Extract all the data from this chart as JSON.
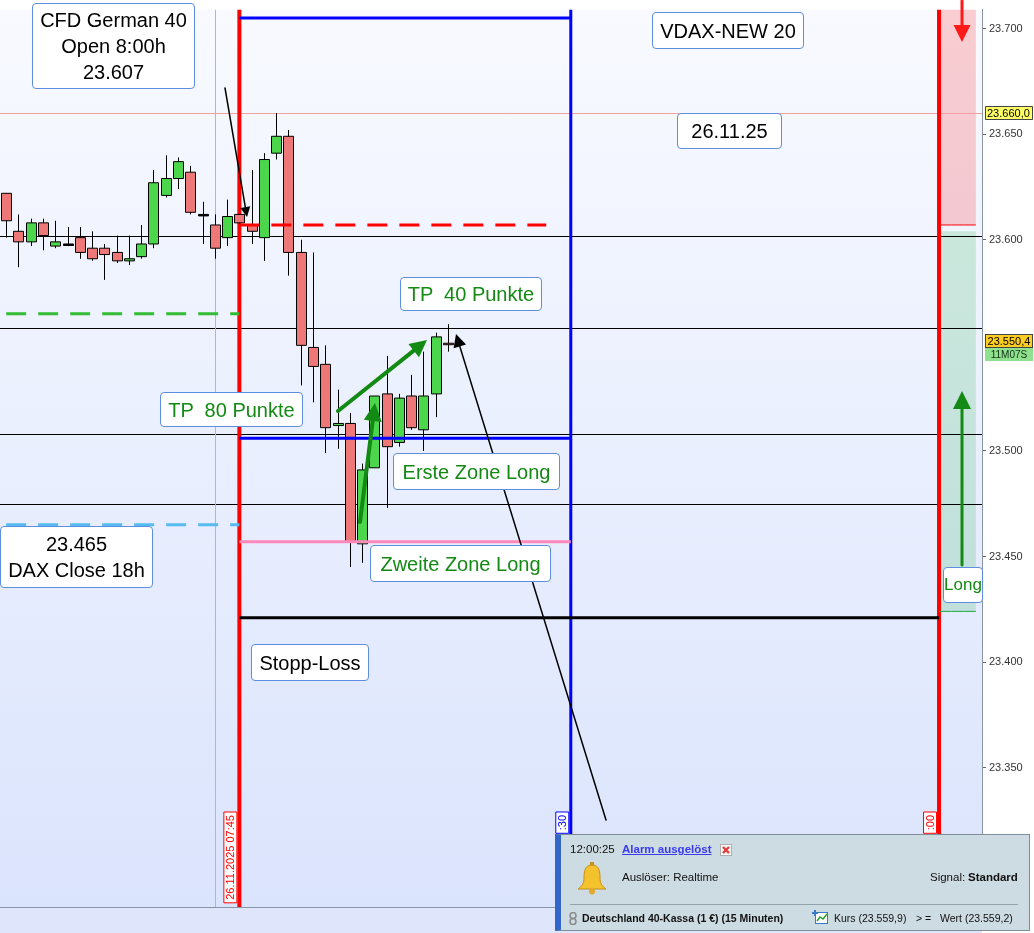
{
  "chart_data": {
    "type": "candlestick",
    "categories": [
      null,
      null,
      null,
      null,
      null,
      null,
      null,
      null,
      null,
      null,
      null,
      null,
      null,
      null,
      null,
      null,
      null,
      null,
      null,
      null,
      null,
      null,
      null,
      null,
      null,
      null,
      null,
      null,
      null,
      null,
      null,
      null,
      null,
      null,
      null,
      null,
      null,
      null,
      null,
      null,
      null,
      null,
      null,
      null,
      null,
      null,
      null,
      null,
      null,
      null,
      null,
      null,
      null,
      null,
      null,
      null,
      null,
      null,
      null,
      null,
      null,
      null,
      null,
      null,
      null,
      null,
      null,
      null,
      null,
      null,
      null,
      null,
      null,
      null,
      null,
      null,
      null,
      null,
      null,
      null
    ],
    "ohlc": [
      [
        23622,
        23622,
        23601,
        23609
      ],
      [
        23604,
        23612,
        23587,
        23599
      ],
      [
        23599,
        23610,
        23597,
        23608
      ],
      [
        23608,
        23610,
        23595,
        23602
      ],
      [
        23597,
        23609,
        23596,
        23599
      ],
      [
        23598,
        23606,
        23597,
        23598
      ],
      [
        23601,
        23606,
        23591,
        23594
      ],
      [
        23596,
        23604,
        23590,
        23591
      ],
      [
        23596,
        23598,
        23581,
        23593
      ],
      [
        23594,
        23602,
        23589,
        23590
      ],
      [
        23590,
        23602,
        23588,
        23591
      ],
      [
        23592,
        23607,
        23591,
        23598
      ],
      [
        23598,
        23633,
        23596,
        23627
      ],
      [
        23621,
        23640,
        23620,
        23629
      ],
      [
        23629,
        23639,
        23624,
        23637
      ],
      [
        23632,
        23635,
        23612,
        23613
      ],
      [
        23612,
        23618,
        23598,
        23612
      ],
      [
        23607,
        23612,
        23591,
        23596
      ],
      [
        23601,
        23619,
        23597,
        23611
      ],
      [
        23612,
        23612,
        23607,
        23608
      ],
      [
        23607,
        23633,
        23598,
        23604
      ],
      [
        23601,
        23641,
        23590,
        23638
      ],
      [
        23641,
        23660,
        23638,
        23649
      ],
      [
        23649,
        23652,
        23583,
        23594
      ],
      [
        23594,
        23600,
        23531,
        23550
      ],
      [
        23549,
        23594,
        23523,
        23540
      ],
      [
        23541,
        23550,
        23499,
        23511
      ],
      [
        23512,
        23529,
        23501,
        23513
      ],
      [
        23513,
        23518,
        23445,
        23457
      ],
      [
        23456,
        23494,
        23447,
        23491
      ],
      [
        23492,
        23526,
        23492,
        23526
      ],
      [
        23527,
        23545,
        23473,
        23502
      ],
      [
        23504,
        23527,
        23502,
        23525
      ],
      [
        23526,
        23536,
        23510,
        23511
      ],
      [
        23510,
        23547,
        23500,
        23526
      ],
      [
        23527,
        23556,
        23516,
        23554
      ],
      [
        23551,
        23560,
        23547,
        23550.4
      ],
      null,
      null,
      null,
      null,
      null,
      null,
      null,
      null,
      null,
      null,
      null,
      null,
      null,
      null,
      null,
      null,
      null,
      null,
      null,
      null,
      null,
      null,
      null,
      null,
      null,
      null,
      null,
      null,
      null,
      null,
      null,
      null,
      null,
      null,
      null,
      null,
      null,
      null,
      null,
      null,
      null,
      null,
      null
    ],
    "colors": [
      "#ee7777",
      "#ee7777",
      "#4cd64c",
      "#ee7777",
      "#4cd64c",
      "#000000",
      "#ee7777",
      "#ee7777",
      "#ee7777",
      "#ee7777",
      "#4cd64c",
      "#4cd64c",
      "#4cd64c",
      "#4cd64c",
      "#4cd64c",
      "#ee7777",
      "#000000",
      "#ee7777",
      "#4cd64c",
      "#ee7777",
      "#ee7777",
      "#4cd64c",
      "#4cd64c",
      "#ee7777",
      "#ee7777",
      "#ee7777",
      "#ee7777",
      "#4cd64c",
      "#ee7777",
      "#4cd64c",
      "#4cd64c",
      "#ee7777",
      "#4cd64c",
      "#ee7777",
      "#4cd64c",
      "#4cd64c",
      "#ee7777",
      null,
      null,
      null,
      null,
      null,
      null,
      null,
      null,
      null,
      null,
      null,
      null,
      null,
      null,
      null,
      null,
      null,
      null,
      null,
      null,
      null,
      null,
      null,
      null,
      null,
      null,
      null,
      null,
      null,
      null,
      null,
      null,
      null,
      null,
      null,
      null,
      null,
      null,
      null,
      null,
      null,
      null,
      null
    ],
    "series": [
      {
        "type": "line",
        "color": "#0000ff",
        "values": [
          null,
          null,
          null,
          null,
          null,
          null,
          null,
          null,
          null,
          null,
          null,
          null,
          null,
          null,
          null,
          null,
          null,
          null,
          null,
          23705,
          23705,
          23705,
          23705,
          23705,
          23705,
          23705,
          23705,
          23705,
          23705,
          23705,
          23705,
          23705,
          23705,
          23705,
          23705,
          23705,
          23705,
          23705,
          23705,
          23705,
          23705,
          23705,
          23705,
          23705,
          23705,
          23705,
          23705,
          null,
          null,
          null,
          null,
          null,
          null,
          null,
          null,
          null,
          null,
          null,
          null,
          null,
          null,
          null,
          null,
          null,
          null,
          null,
          null,
          null,
          null,
          null,
          null,
          null,
          null,
          null,
          null,
          null,
          null,
          null,
          null,
          null
        ]
      },
      {
        "type": "line",
        "color": "#0000ff",
        "values": [
          null,
          null,
          null,
          null,
          null,
          null,
          null,
          null,
          null,
          null,
          null,
          null,
          null,
          null,
          null,
          null,
          null,
          null,
          null,
          23506,
          23506,
          23506,
          23506,
          23506,
          23506,
          23506,
          23506,
          23506,
          23506,
          23506,
          23506,
          23506,
          23506,
          23506,
          23506,
          23506,
          23506,
          23506,
          23506,
          23506,
          23506,
          23506,
          23506,
          23506,
          23506,
          23506,
          23506,
          null,
          null,
          null,
          null,
          null,
          null,
          null,
          null,
          null,
          null,
          null,
          null,
          null,
          null,
          null,
          null,
          null,
          null,
          null,
          null,
          null,
          null,
          null,
          null,
          null,
          null,
          null,
          null,
          null,
          null,
          null,
          null,
          null
        ]
      },
      {
        "type": "line",
        "color": "#ff0000",
        "line_style": "dashed",
        "values": [
          null,
          null,
          null,
          null,
          null,
          null,
          null,
          null,
          null,
          null,
          null,
          null,
          null,
          null,
          null,
          null,
          null,
          null,
          null,
          23607,
          23607,
          23607,
          23607,
          23607,
          23607,
          23607,
          23607,
          23607,
          23607,
          23607,
          23607,
          23607,
          23607,
          23607,
          23607,
          23607,
          23607,
          23607,
          23607,
          23607,
          23607,
          23607,
          23607,
          23607,
          23607,
          null,
          null,
          null,
          null,
          null,
          null,
          null,
          null,
          null,
          null,
          null,
          null,
          null,
          null,
          null,
          null,
          null,
          null,
          null,
          null,
          null,
          null,
          null,
          null,
          null,
          null,
          null,
          null,
          null,
          null,
          null,
          null,
          null,
          null,
          null
        ]
      },
      {
        "type": "line",
        "color": "#33bb33",
        "line_style": "dashed",
        "values": [
          23565,
          23565,
          23565,
          23565,
          23565,
          23565,
          23565,
          23565,
          23565,
          23565,
          23565,
          23565,
          23565,
          23565,
          23565,
          23565,
          23565,
          23565,
          23565,
          23565,
          null,
          null,
          null,
          null,
          null,
          null,
          null,
          null,
          null,
          null,
          null,
          null,
          null,
          null,
          null,
          null,
          null,
          null,
          null,
          null,
          null,
          null,
          null,
          null,
          null,
          null,
          null,
          null,
          null,
          null,
          null,
          null,
          null,
          null,
          null,
          null,
          null,
          null,
          null,
          null,
          null,
          null,
          null,
          null,
          null,
          null,
          null,
          null,
          null,
          null,
          null,
          null,
          null,
          null,
          null,
          null,
          null,
          null,
          null,
          null
        ]
      },
      {
        "type": "line",
        "color": "#55bbf0",
        "line_style": "dashed",
        "values": [
          23465,
          23465,
          23465,
          23465,
          23465,
          23465,
          23465,
          23465,
          23465,
          23465,
          23465,
          23465,
          23465,
          23465,
          23465,
          23465,
          23465,
          23465,
          23465,
          23465,
          null,
          null,
          null,
          null,
          null,
          null,
          null,
          null,
          null,
          null,
          null,
          null,
          null,
          null,
          null,
          null,
          null,
          null,
          null,
          null,
          null,
          null,
          null,
          null,
          null,
          null,
          null,
          null,
          null,
          null,
          null,
          null,
          null,
          null,
          null,
          null,
          null,
          null,
          null,
          null,
          null,
          null,
          null,
          null,
          null,
          null,
          null,
          null,
          null,
          null,
          null,
          null,
          null,
          null,
          null,
          null,
          null,
          null,
          null,
          null
        ]
      },
      {
        "type": "line",
        "color": "#ff88bb",
        "values": [
          null,
          null,
          null,
          null,
          null,
          null,
          null,
          null,
          null,
          null,
          null,
          null,
          null,
          null,
          null,
          null,
          null,
          null,
          null,
          23457,
          23457,
          23457,
          23457,
          23457,
          23457,
          23457,
          23457,
          23457,
          23457,
          23457,
          23457,
          23457,
          23457,
          23457,
          23457,
          23457,
          23457,
          23457,
          23457,
          23457,
          23457,
          23457,
          23457,
          23457,
          23457,
          23457,
          23457,
          null,
          null,
          null,
          null,
          null,
          null,
          null,
          null,
          null,
          null,
          null,
          null,
          null,
          null,
          null,
          null,
          null,
          null,
          null,
          null,
          null,
          null,
          null,
          null,
          null,
          null,
          null,
          null,
          null,
          null,
          null,
          null,
          null
        ]
      },
      {
        "type": "line",
        "color": "#000000",
        "values": [
          null,
          null,
          null,
          null,
          null,
          null,
          null,
          null,
          null,
          null,
          null,
          null,
          null,
          null,
          null,
          null,
          null,
          null,
          null,
          23421,
          23421,
          23421,
          23421,
          23421,
          23421,
          23421,
          23421,
          23421,
          23421,
          23421,
          23421,
          23421,
          23421,
          23421,
          23421,
          23421,
          23421,
          23421,
          23421,
          23421,
          23421,
          23421,
          23421,
          23421,
          23421,
          23421,
          23421,
          23421,
          23421,
          23421,
          23421,
          23421,
          23421,
          23421,
          23421,
          23421,
          23421,
          23421,
          23421,
          23421,
          23421,
          23421,
          23421,
          23421,
          23421,
          23421,
          23421,
          23421,
          23421,
          23421,
          23421,
          23421,
          23421,
          23421,
          23421,
          23421,
          23421,
          null,
          null,
          null
        ]
      },
      {
        "type": "line",
        "color": "#ff0000",
        "values": [
          null,
          null,
          null,
          null,
          null,
          null,
          null,
          null,
          null,
          null,
          null,
          null,
          null,
          null,
          null,
          null,
          null,
          null,
          null,
          null,
          null,
          null,
          null,
          null,
          null,
          null,
          null,
          null,
          null,
          null,
          null,
          null,
          null,
          null,
          null,
          null,
          null,
          null,
          null,
          null,
          null,
          null,
          null,
          null,
          null,
          null,
          null,
          null,
          null,
          null,
          null,
          null,
          null,
          null,
          null,
          null,
          null,
          null,
          null,
          null,
          null,
          null,
          null,
          null,
          null,
          null,
          null,
          null,
          null,
          null,
          null,
          null,
          null,
          null,
          null,
          null,
          23607,
          23607,
          23607,
          23607
        ],
        "lower": [
          null,
          null,
          null,
          null,
          null,
          null,
          null,
          null,
          null,
          null,
          null,
          null,
          null,
          null,
          null,
          null,
          null,
          null,
          null,
          null,
          null,
          null,
          null,
          null,
          null,
          null,
          null,
          null,
          null,
          null,
          null,
          null,
          null,
          null,
          null,
          null,
          null,
          null,
          null,
          null,
          null,
          null,
          null,
          null,
          null,
          null,
          null,
          null,
          null,
          null,
          null,
          null,
          null,
          null,
          null,
          null,
          null,
          null,
          null,
          null,
          null,
          null,
          null,
          null,
          null,
          null,
          null,
          null,
          null,
          null,
          null,
          null,
          null,
          null,
          null,
          null,
          23607,
          23607,
          23607,
          23607
        ],
        "upper": [
          null,
          null,
          null,
          null,
          null,
          null,
          null,
          null,
          null,
          null,
          null,
          null,
          null,
          null,
          null,
          null,
          null,
          null,
          null,
          null,
          null,
          null,
          null,
          null,
          null,
          null,
          null,
          null,
          null,
          null,
          null,
          null,
          null,
          null,
          null,
          null,
          null,
          null,
          null,
          null,
          null,
          null,
          null,
          null,
          null,
          null,
          null,
          null,
          null,
          null,
          null,
          null,
          null,
          null,
          null,
          null,
          null,
          null,
          null,
          null,
          null,
          null,
          null,
          null,
          null,
          null,
          null,
          null,
          null,
          null,
          null,
          null,
          null,
          null,
          null,
          null,
          23709,
          23709,
          23709,
          23709
        ]
      },
      {
        "type": "line",
        "color": "#22aa44",
        "values": [
          null,
          null,
          null,
          null,
          null,
          null,
          null,
          null,
          null,
          null,
          null,
          null,
          null,
          null,
          null,
          null,
          null,
          null,
          null,
          null,
          null,
          null,
          null,
          null,
          null,
          null,
          null,
          null,
          null,
          null,
          null,
          null,
          null,
          null,
          null,
          null,
          null,
          null,
          null,
          null,
          null,
          null,
          null,
          null,
          null,
          null,
          null,
          null,
          null,
          null,
          null,
          null,
          null,
          null,
          null,
          null,
          null,
          null,
          null,
          null,
          null,
          null,
          null,
          null,
          null,
          null,
          null,
          null,
          null,
          null,
          null,
          null,
          null,
          null,
          null,
          null,
          23424,
          23424,
          23424,
          23424
        ],
        "lower": [
          null,
          null,
          null,
          null,
          null,
          null,
          null,
          null,
          null,
          null,
          null,
          null,
          null,
          null,
          null,
          null,
          null,
          null,
          null,
          null,
          null,
          null,
          null,
          null,
          null,
          null,
          null,
          null,
          null,
          null,
          null,
          null,
          null,
          null,
          null,
          null,
          null,
          null,
          null,
          null,
          null,
          null,
          null,
          null,
          null,
          null,
          null,
          null,
          null,
          null,
          null,
          null,
          null,
          null,
          null,
          null,
          null,
          null,
          null,
          null,
          null,
          null,
          null,
          null,
          null,
          null,
          null,
          null,
          null,
          null,
          null,
          null,
          null,
          null,
          null,
          null,
          23424,
          23424,
          23424,
          23424
        ],
        "upper": [
          null,
          null,
          null,
          null,
          null,
          null,
          null,
          null,
          null,
          null,
          null,
          null,
          null,
          null,
          null,
          null,
          null,
          null,
          null,
          null,
          null,
          null,
          null,
          null,
          null,
          null,
          null,
          null,
          null,
          null,
          null,
          null,
          null,
          null,
          null,
          null,
          null,
          null,
          null,
          null,
          null,
          null,
          null,
          null,
          null,
          null,
          null,
          null,
          null,
          null,
          null,
          null,
          null,
          null,
          null,
          null,
          null,
          null,
          null,
          null,
          null,
          null,
          null,
          null,
          null,
          null,
          null,
          null,
          null,
          null,
          null,
          null,
          null,
          null,
          null,
          null,
          23604,
          23604,
          23604,
          23604
        ]
      }
    ],
    "ylim": [
      23284,
      23709
    ],
    "yticks": [
      {
        "value": 23350,
        "label": "23.350"
      },
      {
        "value": 23400,
        "label": "23.400"
      },
      {
        "value": 23450,
        "label": "23.450"
      },
      {
        "value": 23500,
        "label": "23.500"
      },
      {
        "value": 23600,
        "label": "23.600"
      },
      {
        "value": 23650,
        "label": "23.650"
      },
      {
        "value": 23700,
        "label": "23.700"
      }
    ],
    "tick_labels": "y",
    "ref_lines": [
      {
        "axis": "y",
        "value": 23660,
        "label": "23.660,0",
        "color": "#f0a0a0"
      },
      {
        "axis": "y",
        "value": 23602,
        "color": "#000000"
      },
      {
        "axis": "y",
        "value": 23558,
        "color": "#000000"
      },
      {
        "axis": "y",
        "value": 23508,
        "color": "#000000"
      },
      {
        "axis": "y",
        "value": 23475,
        "color": "#000000"
      }
    ],
    "annotations": [
      "CFD German 40\nOpen 8:00h\n23.607",
      "VDAX-NEW 20",
      "26.11.25",
      "TP  40 Punkte",
      "TP  80 Punkte",
      "Erste Zone Long",
      "23.465\nDAX Close 18h",
      "Zweite Zone Long",
      "Stopp-Loss",
      "Long",
      "12:00:25",
      "Alarm ausgelöst",
      "Auslöser: Realtime",
      "Signal:",
      "Standard",
      "Deutschland 40-Kassa (1 €) (15 Minuten)",
      "Kurs (23.559,9)",
      "> =",
      "Wert (23.559,2)",
      "11M07S",
      "23.550,4",
      "26.11.2025 07:45",
      ":30",
      ":00"
    ]
  }
}
